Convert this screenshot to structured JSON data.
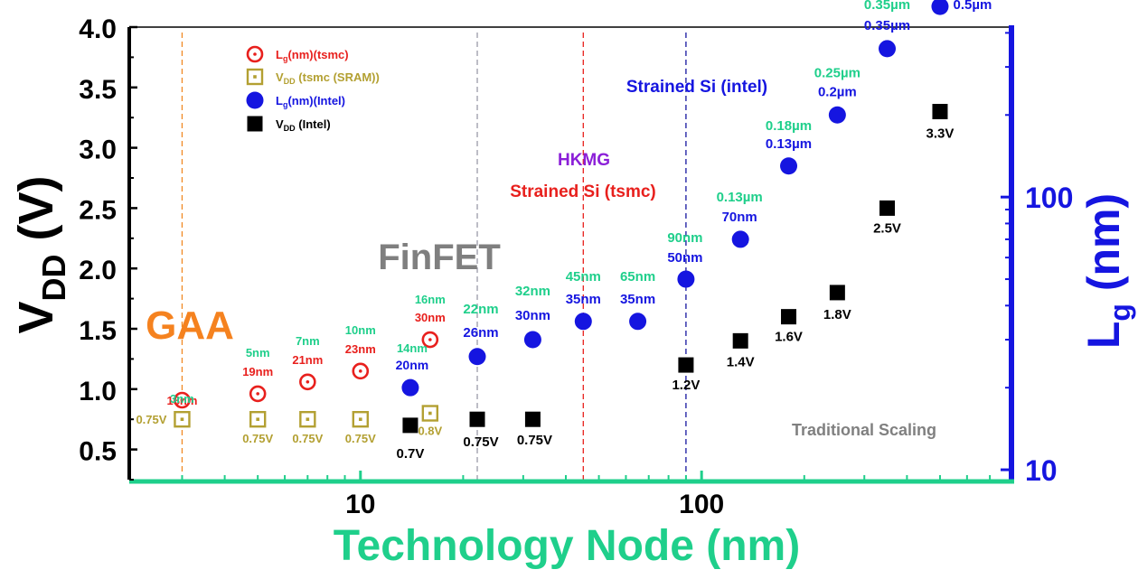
{
  "chart_data": {
    "type": "scatter",
    "xlabel": "Technology Node (nm)",
    "x_scale": "log",
    "xlim": [
      2.1,
      800
    ],
    "x_ticks": [
      "10",
      "100"
    ],
    "ylabel_left": "V",
    "ylabel_left_sub": "DD",
    "ylabel_left_unit": "(V)",
    "ylim_left": [
      0.25,
      4.0
    ],
    "y_ticks_left": [
      "0.5",
      "1.0",
      "1.5",
      "2.0",
      "2.5",
      "3.0",
      "3.5",
      "4.0"
    ],
    "ylabel_right": "L",
    "ylabel_right_sub": "g",
    "ylabel_right_unit": "(nm)",
    "y_scale_right": "log",
    "ylim_right": [
      9.2,
      420
    ],
    "y_ticks_right": [
      "10",
      "100"
    ],
    "legend": [
      {
        "main": "L",
        "sub": "g",
        "rest": "(nm)(tsmc)",
        "marker": "ring",
        "color": "#e8201d"
      },
      {
        "main": "V",
        "sub": "DD",
        "rest": " (tsmc (SRAM))",
        "marker": "hollow-square",
        "color": "#b3a032"
      },
      {
        "main": "L",
        "sub": "g",
        "rest": "(nm)(Intel)",
        "marker": "disc",
        "color": "#1515e0"
      },
      {
        "main": "V",
        "sub": "DD",
        "rest": " (Intel)",
        "marker": "square",
        "color": "#000000"
      }
    ],
    "series": [
      {
        "name": "Lg(nm)(tsmc)",
        "axis": "right",
        "points": [
          {
            "x": 3,
            "y": 18,
            "labels": [
              "18nm"
            ]
          },
          {
            "x": 5,
            "y": 19,
            "labels": [
              "5nm",
              "19nm"
            ]
          },
          {
            "x": 7,
            "y": 21,
            "labels": [
              "7nm",
              "21nm"
            ]
          },
          {
            "x": 10,
            "y": 23,
            "labels": [
              "10nm",
              "23nm"
            ]
          },
          {
            "x": 16,
            "y": 30,
            "labels": [
              "16nm",
              "30nm"
            ]
          }
        ]
      },
      {
        "name": "VDD (tsmc (SRAM))",
        "axis": "left",
        "points": [
          {
            "x": 3,
            "y": 0.75,
            "labels": [
              "3nm",
              "0.75V"
            ]
          },
          {
            "x": 5,
            "y": 0.75,
            "labels": [
              "0.75V"
            ]
          },
          {
            "x": 7,
            "y": 0.75,
            "labels": [
              "0.75V"
            ]
          },
          {
            "x": 10,
            "y": 0.75,
            "labels": [
              "0.75V"
            ]
          },
          {
            "x": 16,
            "y": 0.8,
            "labels": [
              "0.8V"
            ]
          }
        ]
      },
      {
        "name": "Lg(nm)(Intel)",
        "axis": "right",
        "points": [
          {
            "x": 14,
            "y": 20,
            "labels": [
              "14nm",
              "20nm"
            ]
          },
          {
            "x": 22,
            "y": 26,
            "labels": [
              "22nm",
              "26nm"
            ]
          },
          {
            "x": 32,
            "y": 30,
            "labels": [
              "32nm",
              "30nm"
            ]
          },
          {
            "x": 45,
            "y": 35,
            "labels": [
              "45nm",
              "35nm"
            ]
          },
          {
            "x": 65,
            "y": 35,
            "labels": [
              "65nm",
              "35nm"
            ]
          },
          {
            "x": 90,
            "y": 50,
            "labels": [
              "90nm",
              "50nm"
            ]
          },
          {
            "x": 130,
            "y": 70,
            "labels": [
              "0.13µm",
              "70nm"
            ]
          },
          {
            "x": 180,
            "y": 130,
            "labels": [
              "0.18µm",
              "0.13µm"
            ]
          },
          {
            "x": 250,
            "y": 200,
            "labels": [
              "0.25µm",
              "0.2µm"
            ]
          },
          {
            "x": 350,
            "y": 350,
            "labels": [
              "0.35µm",
              "0.35µm"
            ]
          },
          {
            "x": 500,
            "y": 500,
            "labels": [
              "0.5µm",
              "0.5µm"
            ]
          }
        ]
      },
      {
        "name": "VDD (Intel)",
        "axis": "left",
        "points": [
          {
            "x": 14,
            "y": 0.7,
            "labels": [
              "0.7V"
            ]
          },
          {
            "x": 22,
            "y": 0.75,
            "labels": [
              "0.75V"
            ]
          },
          {
            "x": 32,
            "y": 0.75,
            "labels": [
              "0.75V"
            ]
          },
          {
            "x": 90,
            "y": 1.2,
            "labels": [
              "1.2V"
            ]
          },
          {
            "x": 130,
            "y": 1.4,
            "labels": [
              "1.4V"
            ]
          },
          {
            "x": 180,
            "y": 1.6,
            "labels": [
              "1.6V"
            ]
          },
          {
            "x": 250,
            "y": 1.8,
            "labels": [
              "1.8V"
            ]
          },
          {
            "x": 350,
            "y": 2.5,
            "labels": [
              "2.5V"
            ]
          },
          {
            "x": 500,
            "y": 3.3,
            "labels": [
              "3.3V"
            ]
          }
        ]
      }
    ],
    "vlines": [
      {
        "x": 3,
        "color": "#f08a24"
      },
      {
        "x": 22,
        "color": "#9a9aa8"
      },
      {
        "x": 45,
        "color": "#e8201d"
      },
      {
        "x": 90,
        "color": "#1515a0"
      }
    ],
    "annotations": [
      {
        "text": "GAA",
        "color": "#f5821f",
        "size": "huge"
      },
      {
        "text": "FinFET",
        "color": "#7f7f7f",
        "size": "large"
      },
      {
        "text": "HKMG",
        "color": "#8b1fd8",
        "size": "medium"
      },
      {
        "text": "Strained Si (tsmc)",
        "color": "#e8201d",
        "size": "medium"
      },
      {
        "text": "Strained Si (intel)",
        "color": "#1515e0",
        "size": "medium"
      },
      {
        "text": "Traditional Scaling",
        "color": "#808080",
        "size": "small"
      }
    ],
    "colors": {
      "tsmc_lg": "#e8201d",
      "tsmc_vdd": "#b3a032",
      "intel_lg": "#1515e0",
      "intel_vdd": "#000000",
      "node_label": "#1fcf8b",
      "x_axis": "#1fcf8b",
      "right_axis": "#1515e0",
      "left_axis": "#000000"
    }
  }
}
